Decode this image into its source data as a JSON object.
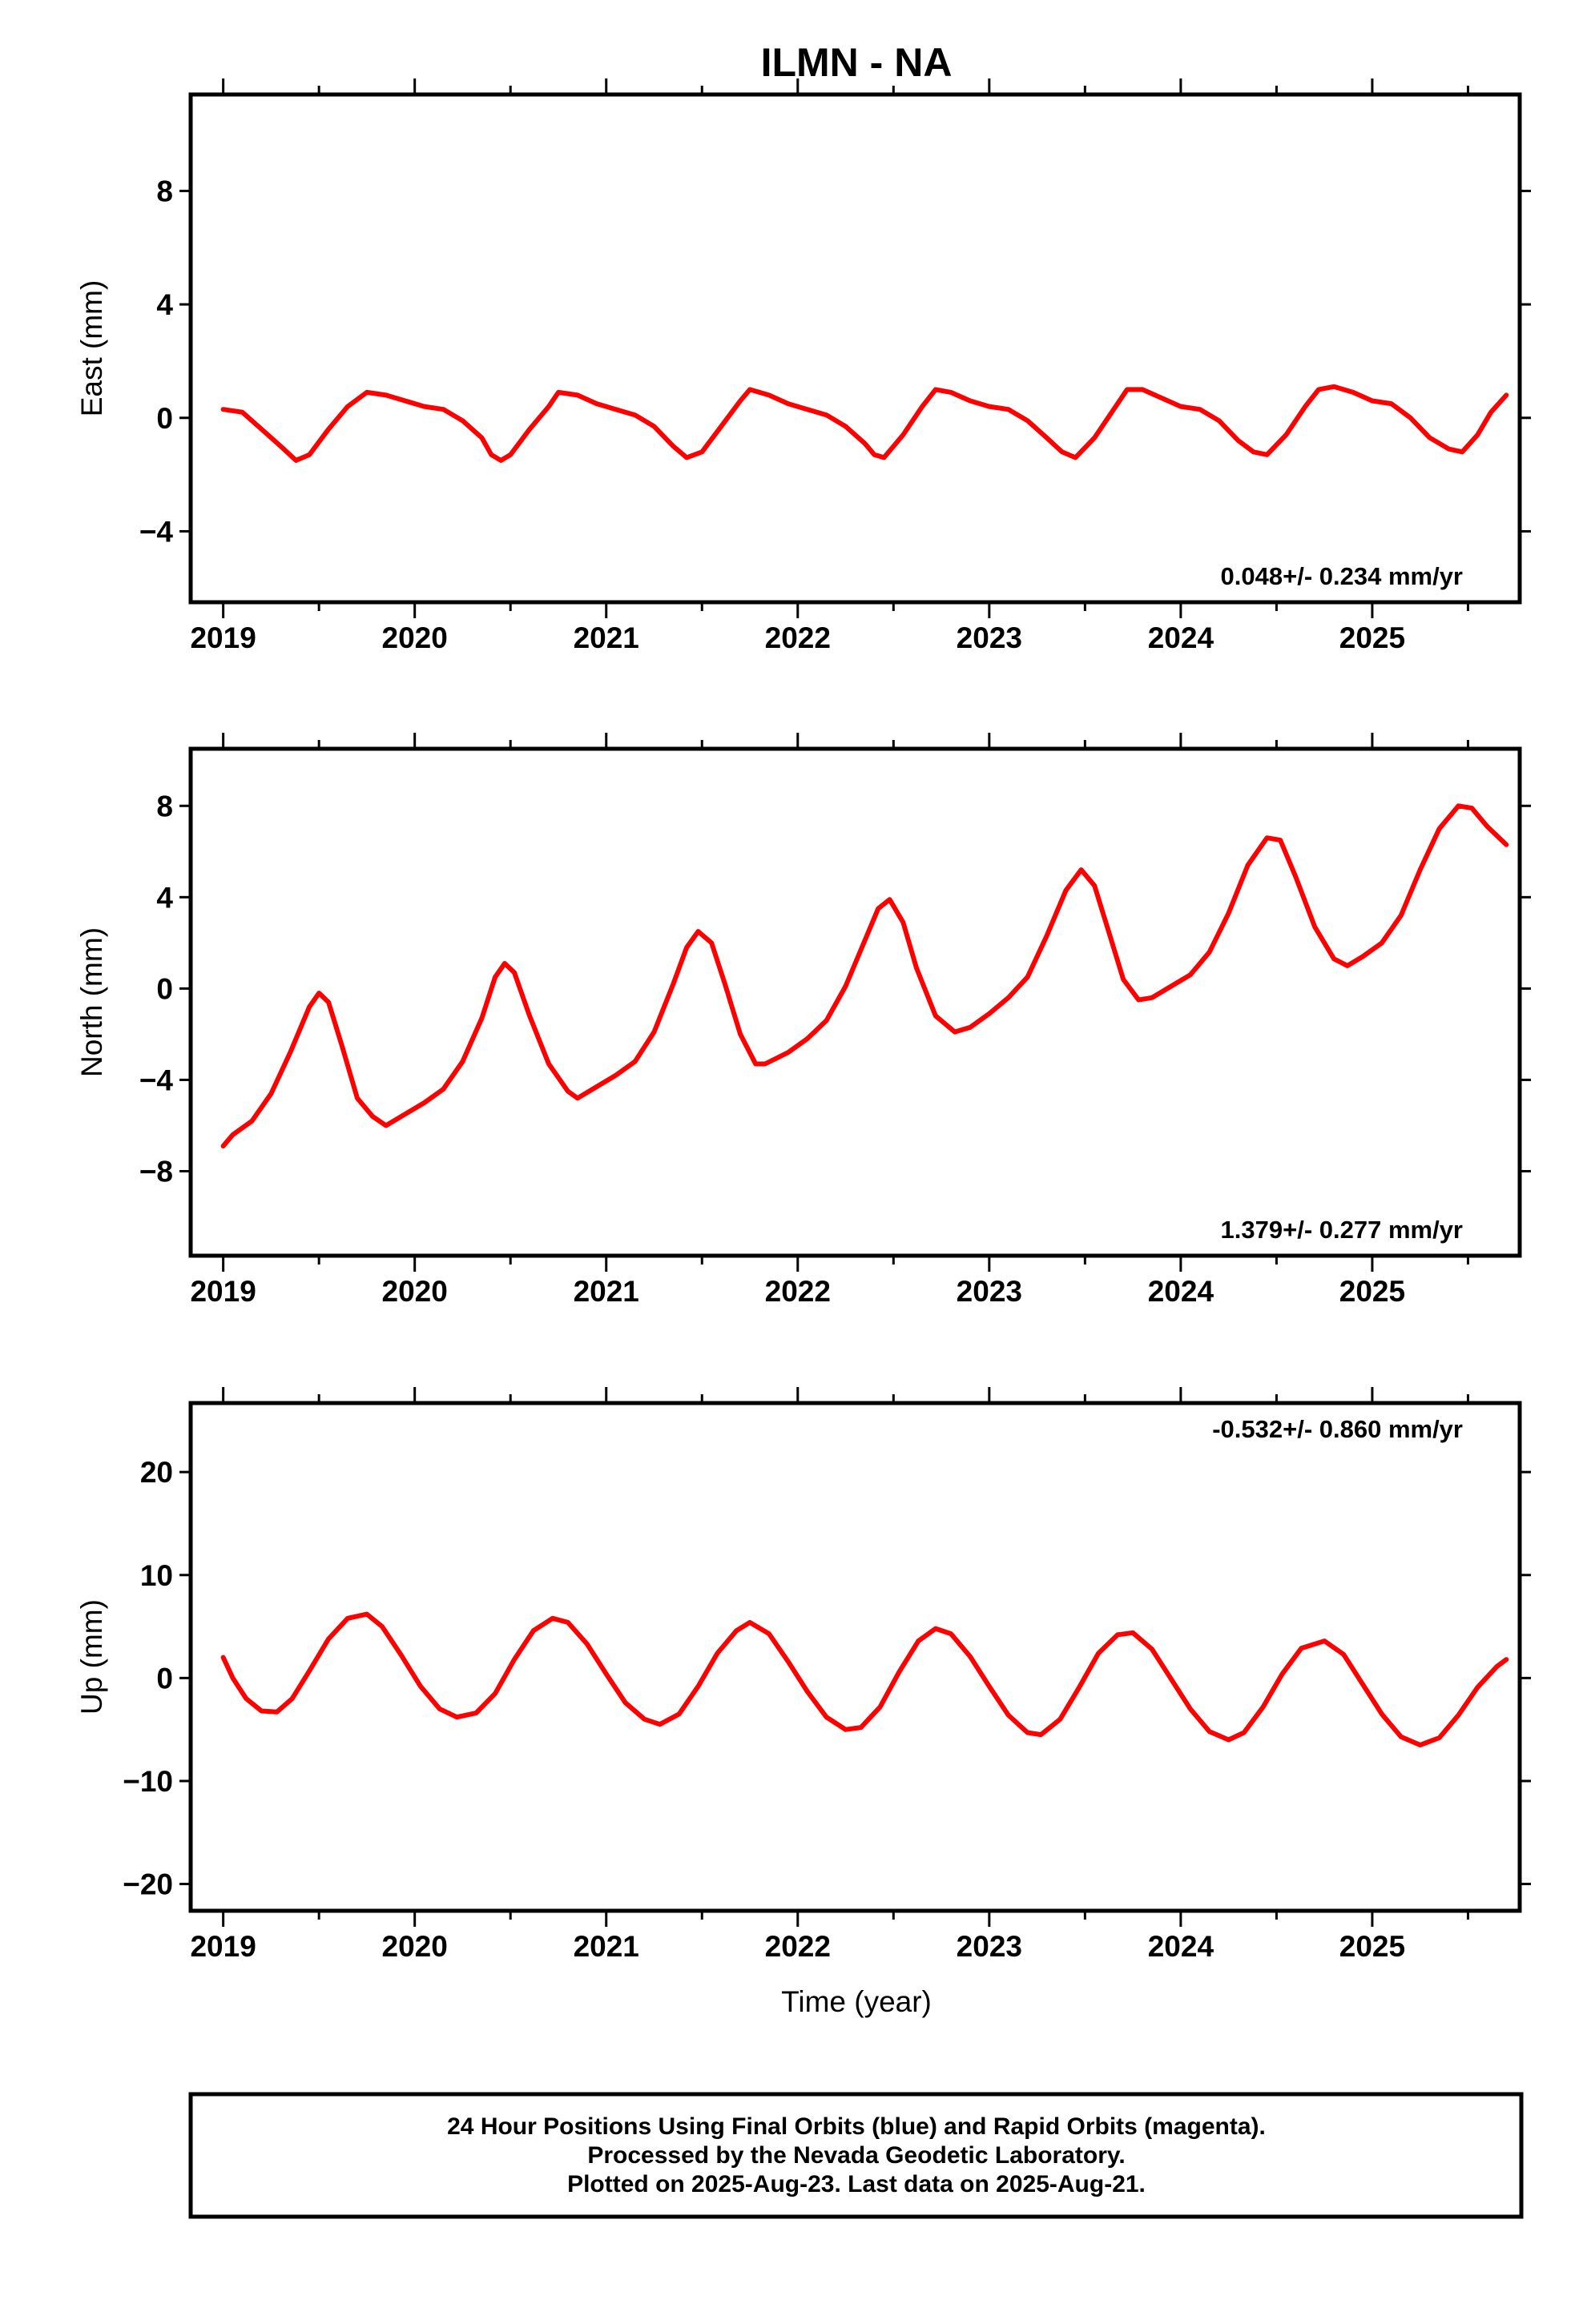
{
  "chart_data": {
    "title": "ILMN - NA",
    "type": "scatter",
    "xlabel": "Time (year)",
    "x_ticks": [
      "2019",
      "2020",
      "2021",
      "2022",
      "2023",
      "2024",
      "2025"
    ],
    "xlim": [
      2018.83,
      2025.77
    ],
    "panels": [
      {
        "ylabel": "East (mm)",
        "ylim": [
          -6.5,
          11.4
        ],
        "yticks": [
          -4,
          0,
          4,
          8
        ],
        "ytick_labels": [
          "−4",
          "0",
          "4",
          "8"
        ],
        "rate_text": "0.048+/- 0.234 mm/yr",
        "rate_position": "bottom-right",
        "series": [
          {
            "values": [
              [
                2019.0,
                0.3
              ],
              [
                2019.1,
                0.2
              ],
              [
                2019.2,
                -0.4
              ],
              [
                2019.3,
                -1.0
              ],
              [
                2019.38,
                -1.5
              ],
              [
                2019.45,
                -1.3
              ],
              [
                2019.55,
                -0.4
              ],
              [
                2019.65,
                0.4
              ],
              [
                2019.75,
                0.9
              ],
              [
                2019.85,
                0.8
              ],
              [
                2019.95,
                0.6
              ],
              [
                2020.05,
                0.4
              ],
              [
                2020.15,
                0.3
              ],
              [
                2020.25,
                -0.1
              ],
              [
                2020.35,
                -0.7
              ],
              [
                2020.4,
                -1.3
              ],
              [
                2020.45,
                -1.5
              ],
              [
                2020.5,
                -1.3
              ],
              [
                2020.6,
                -0.4
              ],
              [
                2020.7,
                0.4
              ],
              [
                2020.75,
                0.9
              ],
              [
                2020.85,
                0.8
              ],
              [
                2020.95,
                0.5
              ],
              [
                2021.05,
                0.3
              ],
              [
                2021.15,
                0.1
              ],
              [
                2021.25,
                -0.3
              ],
              [
                2021.35,
                -1.0
              ],
              [
                2021.42,
                -1.4
              ],
              [
                2021.5,
                -1.2
              ],
              [
                2021.6,
                -0.3
              ],
              [
                2021.7,
                0.6
              ],
              [
                2021.75,
                1.0
              ],
              [
                2021.85,
                0.8
              ],
              [
                2021.95,
                0.5
              ],
              [
                2022.05,
                0.3
              ],
              [
                2022.15,
                0.1
              ],
              [
                2022.25,
                -0.3
              ],
              [
                2022.35,
                -0.9
              ],
              [
                2022.4,
                -1.3
              ],
              [
                2022.45,
                -1.4
              ],
              [
                2022.55,
                -0.6
              ],
              [
                2022.65,
                0.4
              ],
              [
                2022.72,
                1.0
              ],
              [
                2022.8,
                0.9
              ],
              [
                2022.9,
                0.6
              ],
              [
                2023.0,
                0.4
              ],
              [
                2023.1,
                0.3
              ],
              [
                2023.2,
                -0.1
              ],
              [
                2023.3,
                -0.7
              ],
              [
                2023.38,
                -1.2
              ],
              [
                2023.45,
                -1.4
              ],
              [
                2023.55,
                -0.7
              ],
              [
                2023.65,
                0.3
              ],
              [
                2023.72,
                1.0
              ],
              [
                2023.8,
                1.0
              ],
              [
                2023.9,
                0.7
              ],
              [
                2024.0,
                0.4
              ],
              [
                2024.1,
                0.3
              ],
              [
                2024.2,
                -0.1
              ],
              [
                2024.3,
                -0.8
              ],
              [
                2024.38,
                -1.2
              ],
              [
                2024.45,
                -1.3
              ],
              [
                2024.55,
                -0.6
              ],
              [
                2024.65,
                0.4
              ],
              [
                2024.72,
                1.0
              ],
              [
                2024.8,
                1.1
              ],
              [
                2024.9,
                0.9
              ],
              [
                2025.0,
                0.6
              ],
              [
                2025.1,
                0.5
              ],
              [
                2025.2,
                0.0
              ],
              [
                2025.3,
                -0.7
              ],
              [
                2025.4,
                -1.1
              ],
              [
                2025.47,
                -1.2
              ],
              [
                2025.55,
                -0.6
              ],
              [
                2025.62,
                0.2
              ],
              [
                2025.7,
                0.8
              ]
            ]
          }
        ]
      },
      {
        "ylabel": "North (mm)",
        "ylim": [
          -11.7,
          10.5
        ],
        "yticks": [
          -8,
          -4,
          0,
          4,
          8
        ],
        "ytick_labels": [
          "−8",
          "−4",
          "0",
          "4",
          "8"
        ],
        "rate_text": "1.379+/- 0.277 mm/yr",
        "rate_position": "bottom-right",
        "series": [
          {
            "values": [
              [
                2019.0,
                -6.9
              ],
              [
                2019.05,
                -6.4
              ],
              [
                2019.15,
                -5.8
              ],
              [
                2019.25,
                -4.6
              ],
              [
                2019.35,
                -2.8
              ],
              [
                2019.45,
                -0.8
              ],
              [
                2019.5,
                -0.2
              ],
              [
                2019.55,
                -0.6
              ],
              [
                2019.62,
                -2.5
              ],
              [
                2019.7,
                -4.8
              ],
              [
                2019.78,
                -5.6
              ],
              [
                2019.85,
                -6.0
              ],
              [
                2019.95,
                -5.5
              ],
              [
                2020.05,
                -5.0
              ],
              [
                2020.15,
                -4.4
              ],
              [
                2020.25,
                -3.2
              ],
              [
                2020.35,
                -1.3
              ],
              [
                2020.42,
                0.5
              ],
              [
                2020.47,
                1.1
              ],
              [
                2020.52,
                0.7
              ],
              [
                2020.6,
                -1.2
              ],
              [
                2020.7,
                -3.3
              ],
              [
                2020.8,
                -4.5
              ],
              [
                2020.85,
                -4.8
              ],
              [
                2020.95,
                -4.3
              ],
              [
                2021.05,
                -3.8
              ],
              [
                2021.15,
                -3.2
              ],
              [
                2021.25,
                -1.9
              ],
              [
                2021.35,
                0.2
              ],
              [
                2021.42,
                1.8
              ],
              [
                2021.48,
                2.5
              ],
              [
                2021.55,
                2.0
              ],
              [
                2021.62,
                0.2
              ],
              [
                2021.7,
                -2.0
              ],
              [
                2021.78,
                -3.3
              ],
              [
                2021.83,
                -3.3
              ],
              [
                2021.95,
                -2.8
              ],
              [
                2022.05,
                -2.2
              ],
              [
                2022.15,
                -1.4
              ],
              [
                2022.25,
                0.1
              ],
              [
                2022.35,
                2.1
              ],
              [
                2022.42,
                3.5
              ],
              [
                2022.48,
                3.9
              ],
              [
                2022.55,
                2.9
              ],
              [
                2022.62,
                0.9
              ],
              [
                2022.72,
                -1.2
              ],
              [
                2022.82,
                -1.9
              ],
              [
                2022.9,
                -1.7
              ],
              [
                2023.0,
                -1.1
              ],
              [
                2023.1,
                -0.4
              ],
              [
                2023.2,
                0.5
              ],
              [
                2023.3,
                2.3
              ],
              [
                2023.4,
                4.3
              ],
              [
                2023.48,
                5.2
              ],
              [
                2023.55,
                4.5
              ],
              [
                2023.62,
                2.6
              ],
              [
                2023.7,
                0.4
              ],
              [
                2023.78,
                -0.5
              ],
              [
                2023.85,
                -0.4
              ],
              [
                2023.95,
                0.1
              ],
              [
                2024.05,
                0.6
              ],
              [
                2024.15,
                1.6
              ],
              [
                2024.25,
                3.3
              ],
              [
                2024.35,
                5.4
              ],
              [
                2024.45,
                6.6
              ],
              [
                2024.52,
                6.5
              ],
              [
                2024.6,
                4.9
              ],
              [
                2024.7,
                2.7
              ],
              [
                2024.8,
                1.3
              ],
              [
                2024.87,
                1.0
              ],
              [
                2024.95,
                1.4
              ],
              [
                2025.05,
                2.0
              ],
              [
                2025.15,
                3.2
              ],
              [
                2025.25,
                5.2
              ],
              [
                2025.35,
                7.0
              ],
              [
                2025.45,
                8.0
              ],
              [
                2025.52,
                7.9
              ],
              [
                2025.6,
                7.1
              ],
              [
                2025.7,
                6.3
              ]
            ]
          }
        ]
      },
      {
        "ylabel": "Up (mm)",
        "ylim": [
          -22.6,
          26.7
        ],
        "yticks": [
          -20,
          -10,
          0,
          10,
          20
        ],
        "ytick_labels": [
          "−20",
          "−10",
          "0",
          "10",
          "20"
        ],
        "rate_text": "-0.532+/- 0.860 mm/yr",
        "rate_position": "top-right",
        "series": [
          {
            "values": [
              [
                2019.0,
                2.0
              ],
              [
                2019.05,
                0.0
              ],
              [
                2019.12,
                -2.0
              ],
              [
                2019.2,
                -3.2
              ],
              [
                2019.28,
                -3.3
              ],
              [
                2019.36,
                -2.0
              ],
              [
                2019.45,
                0.7
              ],
              [
                2019.55,
                3.8
              ],
              [
                2019.65,
                5.8
              ],
              [
                2019.75,
                6.2
              ],
              [
                2019.83,
                5.0
              ],
              [
                2019.93,
                2.2
              ],
              [
                2020.03,
                -0.8
              ],
              [
                2020.13,
                -3.0
              ],
              [
                2020.22,
                -3.8
              ],
              [
                2020.32,
                -3.4
              ],
              [
                2020.42,
                -1.5
              ],
              [
                2020.52,
                1.8
              ],
              [
                2020.62,
                4.6
              ],
              [
                2020.72,
                5.8
              ],
              [
                2020.8,
                5.4
              ],
              [
                2020.9,
                3.3
              ],
              [
                2021.0,
                0.4
              ],
              [
                2021.1,
                -2.4
              ],
              [
                2021.2,
                -4.0
              ],
              [
                2021.28,
                -4.5
              ],
              [
                2021.38,
                -3.5
              ],
              [
                2021.48,
                -0.8
              ],
              [
                2021.58,
                2.4
              ],
              [
                2021.68,
                4.6
              ],
              [
                2021.75,
                5.4
              ],
              [
                2021.85,
                4.3
              ],
              [
                2021.95,
                1.6
              ],
              [
                2022.05,
                -1.3
              ],
              [
                2022.15,
                -3.8
              ],
              [
                2022.25,
                -5.0
              ],
              [
                2022.33,
                -4.8
              ],
              [
                2022.43,
                -2.8
              ],
              [
                2022.53,
                0.6
              ],
              [
                2022.63,
                3.6
              ],
              [
                2022.72,
                4.8
              ],
              [
                2022.8,
                4.3
              ],
              [
                2022.9,
                2.1
              ],
              [
                2023.0,
                -0.8
              ],
              [
                2023.1,
                -3.6
              ],
              [
                2023.2,
                -5.3
              ],
              [
                2023.27,
                -5.5
              ],
              [
                2023.37,
                -4.0
              ],
              [
                2023.47,
                -0.9
              ],
              [
                2023.57,
                2.4
              ],
              [
                2023.67,
                4.2
              ],
              [
                2023.75,
                4.4
              ],
              [
                2023.85,
                2.8
              ],
              [
                2023.95,
                -0.1
              ],
              [
                2024.05,
                -3.0
              ],
              [
                2024.15,
                -5.2
              ],
              [
                2024.25,
                -6.0
              ],
              [
                2024.33,
                -5.3
              ],
              [
                2024.43,
                -2.8
              ],
              [
                2024.53,
                0.4
              ],
              [
                2024.63,
                2.9
              ],
              [
                2024.75,
                3.6
              ],
              [
                2024.85,
                2.3
              ],
              [
                2024.95,
                -0.6
              ],
              [
                2025.05,
                -3.5
              ],
              [
                2025.15,
                -5.7
              ],
              [
                2025.25,
                -6.5
              ],
              [
                2025.35,
                -5.8
              ],
              [
                2025.45,
                -3.6
              ],
              [
                2025.55,
                -0.9
              ],
              [
                2025.65,
                1.1
              ],
              [
                2025.7,
                1.8
              ]
            ]
          }
        ]
      }
    ],
    "colors": {
      "final_orbits": "#0000ff",
      "rapid_orbits": "#ff00ff",
      "fit_line": "#ff0000",
      "frame": "#000000"
    },
    "legend": "bottom-box"
  },
  "footer": {
    "line1": "24 Hour Positions Using Final Orbits (blue) and Rapid Orbits (magenta).",
    "line2": "Processed by the Nevada Geodetic Laboratory.",
    "line3": "Plotted on 2025-Aug-23. Last data on 2025-Aug-21."
  }
}
